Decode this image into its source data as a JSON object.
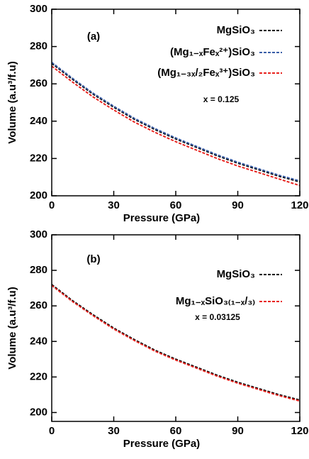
{
  "chart_data": [
    {
      "type": "line",
      "panel_label": "(a)",
      "annotation": "x = 0.125",
      "xlabel": "Pressure (GPa)",
      "ylabel": "Volume (a.u³/f.u)",
      "x": [
        0,
        10,
        20,
        30,
        40,
        50,
        60,
        70,
        80,
        90,
        100,
        110,
        120
      ],
      "series": [
        {
          "name": "MgSiO₃",
          "color": "#000000",
          "values": [
            271,
            262.5,
            254.5,
            247.5,
            241,
            235.5,
            230.5,
            226,
            221.5,
            217.5,
            214,
            210.5,
            207.5
          ]
        },
        {
          "name": "(Mg₁₋ₓFeₓ²⁺)SiO₃",
          "color": "#3a5fa8",
          "values": [
            271.5,
            263,
            255,
            248,
            241.5,
            236,
            231,
            226.5,
            222,
            218,
            214.5,
            211,
            208
          ]
        },
        {
          "name": "(Mg₁₋₃ₓ/₂Feₓ³⁺)SiO₃",
          "color": "#e8231e",
          "values": [
            269.5,
            261,
            253,
            246,
            239.5,
            234,
            229,
            224.5,
            220,
            216,
            212.5,
            209,
            205.5
          ]
        }
      ],
      "xlim": [
        0,
        120
      ],
      "ylim": [
        200,
        300
      ],
      "xticks": [
        0,
        30,
        60,
        90,
        120
      ],
      "yticks": [
        200,
        220,
        240,
        260,
        280,
        300
      ]
    },
    {
      "type": "line",
      "panel_label": "(b)",
      "annotation": "x = 0.03125",
      "xlabel": "Pressure (GPa)",
      "ylabel": "Volume (a.u³/f.u)",
      "x": [
        0,
        10,
        20,
        30,
        40,
        50,
        60,
        70,
        80,
        90,
        100,
        110,
        120
      ],
      "series": [
        {
          "name": "MgSiO₃",
          "color": "#000000",
          "values": [
            272,
            263,
            255,
            247.5,
            241,
            235,
            230,
            225.5,
            221,
            217,
            213.5,
            210,
            207
          ]
        },
        {
          "name": "Mg₁₋ₓSiO₃₍₁₋ₓ/₃₎",
          "color": "#e8231e",
          "values": [
            271.5,
            262.5,
            254.5,
            247,
            240.5,
            234.5,
            229.5,
            225,
            220.5,
            216.5,
            213,
            209.5,
            206.5
          ]
        }
      ],
      "xlim": [
        0,
        120
      ],
      "ylim": [
        195,
        300
      ],
      "xticks": [
        0,
        30,
        60,
        90,
        120
      ],
      "yticks": [
        200,
        220,
        240,
        260,
        280,
        300
      ]
    }
  ]
}
